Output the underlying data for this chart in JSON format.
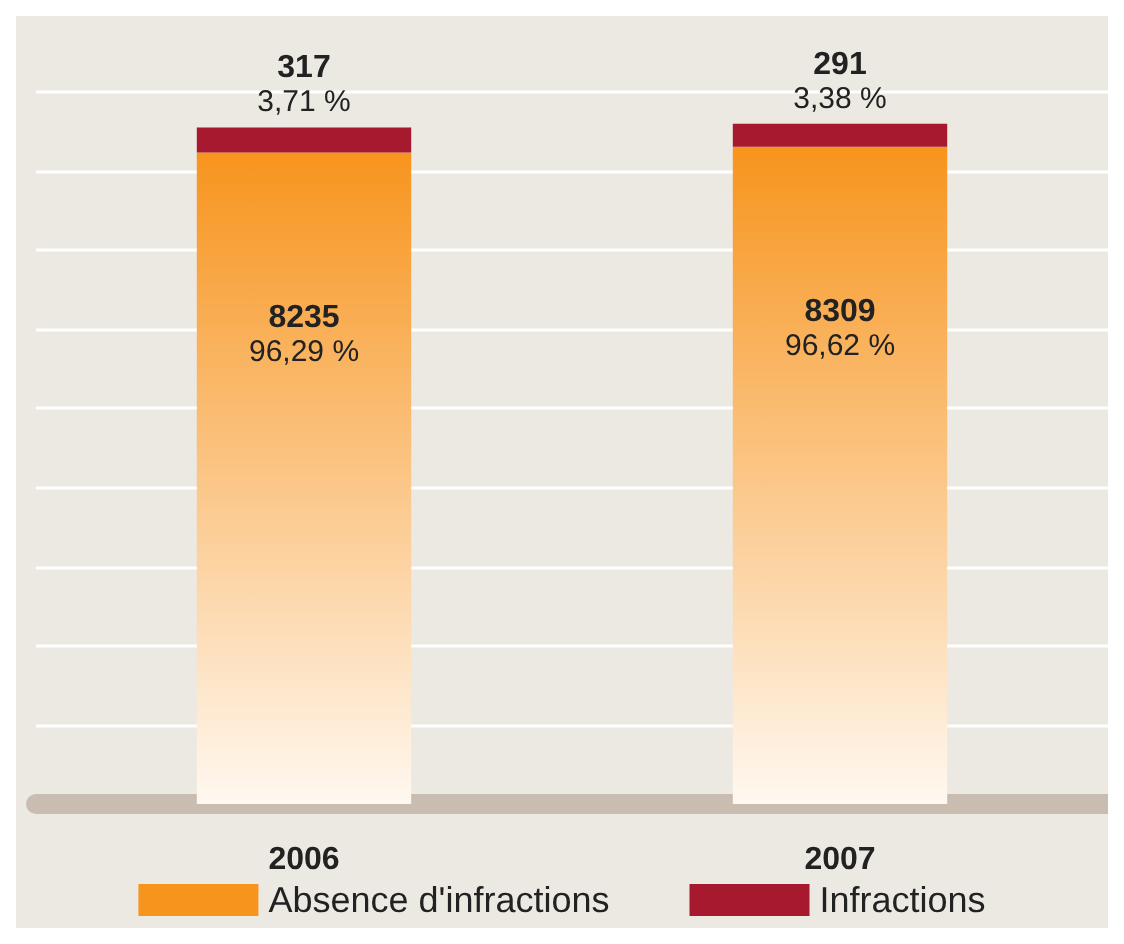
{
  "chart_data": {
    "type": "bar",
    "stacked": true,
    "categories": [
      "2006",
      "2007"
    ],
    "series": [
      {
        "name": "Absence d'infractions",
        "color": "#f7941d",
        "values": [
          8235,
          8309
        ],
        "value_labels": [
          "8235\n96,29 %",
          "8309\n96,62 %"
        ]
      },
      {
        "name": "Infractions",
        "color": "#a6192e",
        "values": [
          317,
          291
        ],
        "value_labels": [
          "317\n3,71 %",
          "291\n3,38 %"
        ]
      }
    ],
    "ylim": [
      0,
      9000
    ],
    "yticks": [
      {
        "value": 0,
        "label": null
      },
      {
        "value": 1000,
        "label": null
      },
      {
        "value": 2000,
        "label": null
      },
      {
        "value": 3000,
        "label": null
      },
      {
        "value": 4000,
        "label": null
      },
      {
        "value": 5000,
        "label": null
      },
      {
        "value": 6000,
        "label": null
      },
      {
        "value": 7000,
        "label": null
      },
      {
        "value": 8000,
        "label": null
      },
      {
        "value": 9000,
        "label": null
      }
    ],
    "grid": "y",
    "tick_labels": "x",
    "legend": "bottom"
  }
}
